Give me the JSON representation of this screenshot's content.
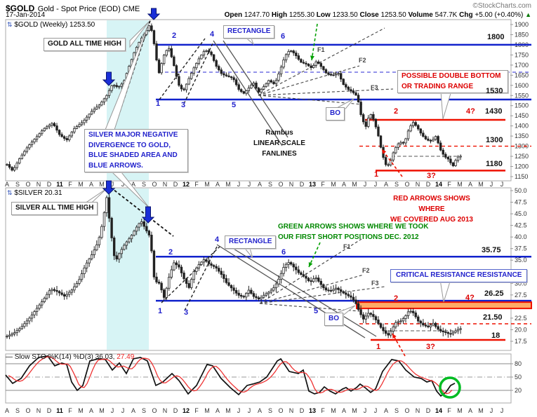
{
  "header": {
    "symbol": "$GOLD",
    "description": "Gold - Spot Price (EOD) CME",
    "date": "17-Jan-2014",
    "copyright": "©StockCharts.com",
    "quote": {
      "open_label": "Open",
      "open": "1247.70",
      "high_label": "High",
      "high": "1255.30",
      "low_label": "Low",
      "low": "1233.50",
      "close_label": "Close",
      "close": "1253.50",
      "volume_label": "Volume",
      "volume": "547.7K",
      "chg_label": "Chg",
      "chg": "+5.00 (+0.40%)",
      "direction_icon": "▲"
    }
  },
  "gold_panel": {
    "icon": "⇅",
    "title": "$GOLD (Weekly) 1253.50",
    "callout_ath": "GOLD ALL TIME HIGH",
    "callout_rectangle": "RECTANGLE",
    "callout_double_bottom": "POSSIBLE DOUBLE BOTTOM\nOR TRADING RANGE",
    "callout_divergence": "SILVER MAJOR NEGATIVE\nDIVERGENCE TO GOLD,\nBLUE SHADED AREA AND\nBLUE  ARROWS.",
    "note_rambus": "Rambus\nLINEAR SCALE\nFANLINES",
    "callout_bo": "BO",
    "numbers_blue": [
      "1",
      "2",
      "3",
      "4",
      "5",
      "6"
    ],
    "numbers_red": [
      "2",
      "4?",
      "1",
      "3?"
    ],
    "fan_labels": [
      "F1",
      "F2",
      "F3"
    ],
    "price_labels": [
      "1800",
      "1530",
      "1430",
      "1300",
      "1180"
    ]
  },
  "silver_panel": {
    "icon": "⇅",
    "title": "$SILVER 20.31",
    "callout_ath": "SILVER ALL TIME HIGH",
    "callout_rectangle": "RECTANGLE",
    "note_red": "RED ARROWS SHOWS WHERE\nWE COVERED AUG 2013",
    "note_green": "GREEN ARROWS SHOWS WHERE WE TOOK\nOUR FIRST SHORT POSITIONS DEC. 2012",
    "callout_critical": "CRITICAL RESISTANCE RESISTANCE",
    "callout_bo": "BO",
    "numbers_blue": [
      "1",
      "2",
      "3",
      "4",
      "5",
      "6"
    ],
    "numbers_red": [
      "2",
      "4?",
      "1",
      "3?"
    ],
    "fan_labels": [
      "F1",
      "F2",
      "F3"
    ],
    "price_labels": [
      "35.75",
      "26.25",
      "21.50",
      "18"
    ]
  },
  "sto_panel": {
    "legend_dash": "—",
    "legend_prefix": "Slow STO %K(14) %D(3)",
    "k_value": "36.03,",
    "d_value": "27.49"
  },
  "colors": {
    "blue_line": "#1122cc",
    "red_line": "#ee1100",
    "cyan_band": "#cdf1f2",
    "green_annot": "#008800",
    "arrow_blue": "#1a2fd8",
    "band_fill": "#ffaa66",
    "sto_k": "#111111",
    "sto_d": "#ee3333",
    "green_circle": "#00bb22"
  },
  "chart_data": {
    "type": "candlestick",
    "months": [
      "A",
      "S",
      "O",
      "N",
      "D",
      "11",
      "F",
      "M",
      "A",
      "M",
      "J",
      "J",
      "A",
      "S",
      "O",
      "N",
      "D",
      "12",
      "F",
      "M",
      "A",
      "M",
      "J",
      "J",
      "A",
      "S",
      "O",
      "N",
      "D",
      "13",
      "F",
      "M",
      "A",
      "M",
      "J",
      "J",
      "A",
      "S",
      "O",
      "N",
      "D",
      "14",
      "F",
      "M",
      "A",
      "M",
      "J",
      "J"
    ],
    "gold": {
      "ylim": [
        1150,
        1900
      ],
      "y_ticks": [
        1900,
        1850,
        1800,
        1750,
        1700,
        1650,
        1600,
        1550,
        1500,
        1450,
        1400,
        1350,
        1300,
        1250,
        1200,
        1150
      ],
      "levels": {
        "rect_top": 1800,
        "rect_mid": 1665,
        "rect_bottom": 1530,
        "red_top": 1430,
        "red_dashed": 1300,
        "red_bottom": 1180
      },
      "anchors": [
        [
          10,
          1210
        ],
        [
          18,
          1178
        ],
        [
          28,
          1240
        ],
        [
          40,
          1300
        ],
        [
          52,
          1345
        ],
        [
          62,
          1385
        ],
        [
          75,
          1415
        ],
        [
          85,
          1355
        ],
        [
          95,
          1330
        ],
        [
          105,
          1385
        ],
        [
          118,
          1420
        ],
        [
          130,
          1470
        ],
        [
          142,
          1505
        ],
        [
          152,
          1550
        ],
        [
          160,
          1605
        ],
        [
          168,
          1590
        ],
        [
          176,
          1615
        ],
        [
          184,
          1695
        ],
        [
          192,
          1770
        ],
        [
          200,
          1825
        ],
        [
          208,
          1865
        ],
        [
          214,
          1905
        ],
        [
          220,
          1795
        ],
        [
          226,
          1655
        ],
        [
          233,
          1745
        ],
        [
          240,
          1790
        ],
        [
          247,
          1710
        ],
        [
          254,
          1605
        ],
        [
          261,
          1570
        ],
        [
          268,
          1625
        ],
        [
          276,
          1685
        ],
        [
          284,
          1735
        ],
        [
          292,
          1775
        ],
        [
          300,
          1760
        ],
        [
          308,
          1695
        ],
        [
          316,
          1655
        ],
        [
          324,
          1645
        ],
        [
          332,
          1635
        ],
        [
          340,
          1580
        ],
        [
          347,
          1560
        ],
        [
          354,
          1585
        ],
        [
          361,
          1615
        ],
        [
          368,
          1565
        ],
        [
          376,
          1595
        ],
        [
          383,
          1625
        ],
        [
          391,
          1605
        ],
        [
          398,
          1665
        ],
        [
          406,
          1745
        ],
        [
          413,
          1775
        ],
        [
          420,
          1755
        ],
        [
          428,
          1715
        ],
        [
          436,
          1705
        ],
        [
          444,
          1685
        ],
        [
          451,
          1720
        ],
        [
          458,
          1690
        ],
        [
          466,
          1655
        ],
        [
          474,
          1650
        ],
        [
          482,
          1660
        ],
        [
          489,
          1605
        ],
        [
          496,
          1580
        ],
        [
          503,
          1565
        ],
        [
          509,
          1545
        ],
        [
          515,
          1440
        ],
        [
          521,
          1395
        ],
        [
          527,
          1465
        ],
        [
          533,
          1425
        ],
        [
          539,
          1350
        ],
        [
          545,
          1255
        ],
        [
          551,
          1195
        ],
        [
          556,
          1225
        ],
        [
          562,
          1285
        ],
        [
          569,
          1320
        ],
        [
          576,
          1315
        ],
        [
          582,
          1380
        ],
        [
          588,
          1420
        ],
        [
          594,
          1395
        ],
        [
          601,
          1355
        ],
        [
          608,
          1330
        ],
        [
          615,
          1325
        ],
        [
          621,
          1350
        ],
        [
          627,
          1285
        ],
        [
          633,
          1250
        ],
        [
          639,
          1235
        ],
        [
          645,
          1200
        ],
        [
          651,
          1245
        ],
        [
          658,
          1253
        ]
      ]
    },
    "silver": {
      "ylim": [
        17.5,
        50.0
      ],
      "y_ticks": [
        50.0,
        47.5,
        45.0,
        42.5,
        40.0,
        37.5,
        35.0,
        32.5,
        30.0,
        27.5,
        25.0,
        22.5,
        20.0,
        17.5
      ],
      "levels": {
        "rect_top": 35.75,
        "rect_bottom": 26.25,
        "red_dashed": 21.0,
        "red_bottom": 18.0
      },
      "anchors": [
        [
          10,
          18.6
        ],
        [
          20,
          19.3
        ],
        [
          30,
          20.5
        ],
        [
          42,
          22.5
        ],
        [
          52,
          24.5
        ],
        [
          62,
          26.5
        ],
        [
          72,
          28.8
        ],
        [
          82,
          28.2
        ],
        [
          92,
          27.2
        ],
        [
          102,
          28.5
        ],
        [
          112,
          30.5
        ],
        [
          122,
          34
        ],
        [
          132,
          36.5
        ],
        [
          140,
          39
        ],
        [
          146,
          43
        ],
        [
          152,
          48.5
        ],
        [
          158,
          41
        ],
        [
          164,
          34.5
        ],
        [
          170,
          36.5
        ],
        [
          178,
          38.5
        ],
        [
          186,
          40
        ],
        [
          194,
          42
        ],
        [
          201,
          43.5
        ],
        [
          208,
          41.5
        ],
        [
          214,
          40
        ],
        [
          220,
          30.5
        ],
        [
          227,
          30
        ],
        [
          234,
          26.8
        ],
        [
          241,
          31.5
        ],
        [
          248,
          34.5
        ],
        [
          255,
          33.5
        ],
        [
          262,
          31
        ],
        [
          269,
          29
        ],
        [
          276,
          32.5
        ],
        [
          283,
          34
        ],
        [
          291,
          35.2
        ],
        [
          299,
          34
        ],
        [
          307,
          33.5
        ],
        [
          315,
          32
        ],
        [
          323,
          30
        ],
        [
          331,
          28.8
        ],
        [
          339,
          27.5
        ],
        [
          347,
          27
        ],
        [
          354,
          28.6
        ],
        [
          361,
          27.2
        ],
        [
          369,
          26.6
        ],
        [
          377,
          27.6
        ],
        [
          384,
          28.2
        ],
        [
          391,
          29.2
        ],
        [
          398,
          31.2
        ],
        [
          405,
          33.8
        ],
        [
          412,
          34.6
        ],
        [
          419,
          33.4
        ],
        [
          426,
          32.2
        ],
        [
          434,
          31.4
        ],
        [
          442,
          30.2
        ],
        [
          449,
          31.4
        ],
        [
          456,
          30
        ],
        [
          463,
          28.6
        ],
        [
          471,
          28.4
        ],
        [
          479,
          29
        ],
        [
          486,
          28.2
        ],
        [
          493,
          27.6
        ],
        [
          500,
          27
        ],
        [
          506,
          26
        ],
        [
          512,
          23.8
        ],
        [
          518,
          22.2
        ],
        [
          524,
          23.6
        ],
        [
          530,
          23.2
        ],
        [
          536,
          22
        ],
        [
          542,
          20.6
        ],
        [
          548,
          19.4
        ],
        [
          553,
          18.8
        ],
        [
          558,
          20
        ],
        [
          564,
          21.6
        ],
        [
          571,
          21.9
        ],
        [
          577,
          22.8
        ],
        [
          583,
          24.2
        ],
        [
          589,
          23.6
        ],
        [
          596,
          21.8
        ],
        [
          603,
          21
        ],
        [
          610,
          20.6
        ],
        [
          617,
          21.4
        ],
        [
          623,
          20.2
        ],
        [
          629,
          19.6
        ],
        [
          635,
          19.4
        ],
        [
          641,
          19
        ],
        [
          647,
          19.6
        ],
        [
          653,
          20.1
        ],
        [
          658,
          20.3
        ]
      ]
    },
    "sto": {
      "ylim": [
        0,
        100
      ],
      "y_ticks": [
        80,
        50,
        20
      ],
      "k": [
        [
          8,
          54.7
        ],
        [
          18,
          35.8
        ],
        [
          30,
          46.8
        ],
        [
          42,
          75.3
        ],
        [
          55,
          94.2
        ],
        [
          68,
          97.4
        ],
        [
          78,
          75.3
        ],
        [
          88,
          81.6
        ],
        [
          95,
          78.4
        ],
        [
          102,
          38.9
        ],
        [
          110,
          20
        ],
        [
          118,
          31.1
        ],
        [
          128,
          86.3
        ],
        [
          140,
          91.1
        ],
        [
          150,
          89.5
        ],
        [
          160,
          65.8
        ],
        [
          170,
          81.6
        ],
        [
          180,
          57.9
        ],
        [
          190,
          91.1
        ],
        [
          200,
          94.2
        ],
        [
          210,
          86.3
        ],
        [
          222,
          31.1
        ],
        [
          232,
          38.9
        ],
        [
          245,
          57.9
        ],
        [
          255,
          42.1
        ],
        [
          268,
          12.1
        ],
        [
          280,
          31.1
        ],
        [
          295,
          78.4
        ],
        [
          303,
          75.3
        ],
        [
          315,
          46.8
        ],
        [
          328,
          26.3
        ],
        [
          340,
          10.5
        ],
        [
          352,
          31.1
        ],
        [
          360,
          34.2
        ],
        [
          370,
          38.9
        ],
        [
          380,
          50
        ],
        [
          395,
          86.3
        ],
        [
          400,
          91.1
        ],
        [
          412,
          62.6
        ],
        [
          425,
          57.9
        ],
        [
          432,
          65.8
        ],
        [
          440,
          18.4
        ],
        [
          448,
          12.1
        ],
        [
          455,
          15.3
        ],
        [
          462,
          27.9
        ],
        [
          470,
          18.4
        ],
        [
          478,
          12.1
        ],
        [
          488,
          23.2
        ],
        [
          493,
          26.3
        ],
        [
          500,
          18.4
        ],
        [
          508,
          26.3
        ],
        [
          513,
          34.2
        ],
        [
          520,
          26.3
        ],
        [
          528,
          15.3
        ],
        [
          535,
          23.2
        ],
        [
          545,
          62.6
        ],
        [
          558,
          89.5
        ],
        [
          568,
          86.3
        ],
        [
          578,
          65.8
        ],
        [
          590,
          50
        ],
        [
          600,
          46.8
        ],
        [
          608,
          38.9
        ],
        [
          615,
          42.1
        ],
        [
          622,
          18.4
        ],
        [
          628,
          7.4
        ],
        [
          635,
          15.3
        ],
        [
          642,
          31.1
        ],
        [
          648,
          36.0
        ]
      ]
    }
  }
}
